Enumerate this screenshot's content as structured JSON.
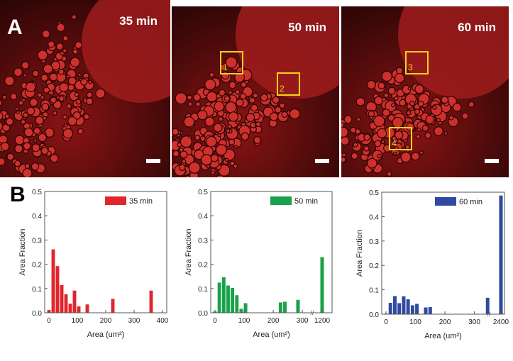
{
  "panel_a": {
    "letter": "A",
    "images": [
      {
        "time_label": "35 min",
        "rois": []
      },
      {
        "time_label": "50 min",
        "rois": [
          "1",
          "2"
        ]
      },
      {
        "time_label": "60 min",
        "rois": [
          "3",
          "4"
        ]
      }
    ],
    "roi_color": "#f2d21b"
  },
  "panel_b": {
    "letter": "B"
  },
  "chart_data": [
    {
      "type": "bar",
      "legend": "35 min",
      "color": "#e0262c",
      "xlabel": "Area (um²)",
      "ylabel": "Area Fraction",
      "ylim": [
        0,
        0.5
      ],
      "yticks": [
        "0.0",
        "0.1",
        "0.2",
        "0.3",
        "0.4",
        "0.5"
      ],
      "xticks": [
        "0",
        "100",
        "200",
        "300",
        "400"
      ],
      "legend_position": "top-right",
      "x": [
        0,
        15,
        30,
        45,
        60,
        75,
        90,
        105,
        135,
        225,
        360
      ],
      "values": [
        0.012,
        0.262,
        0.193,
        0.115,
        0.077,
        0.038,
        0.092,
        0.027,
        0.035,
        0.058,
        0.092
      ]
    },
    {
      "type": "bar",
      "legend": "50 min",
      "color": "#1aa24a",
      "xlabel": "Area (um²)",
      "ylabel": "Area Fraction",
      "ylim": [
        0,
        0.5
      ],
      "yticks": [
        "0.0",
        "0.1",
        "0.2",
        "0.3",
        "0.4",
        "0.5"
      ],
      "xticks": [
        "0",
        "100",
        "200",
        "300",
        "1200"
      ],
      "axis_break": "300–1200",
      "legend_position": "top-right",
      "x": [
        0,
        15,
        30,
        45,
        60,
        75,
        90,
        105,
        225,
        240,
        285,
        1200
      ],
      "values": [
        0.006,
        0.125,
        0.147,
        0.113,
        0.103,
        0.073,
        0.017,
        0.04,
        0.043,
        0.046,
        0.054,
        0.23
      ]
    },
    {
      "type": "bar",
      "legend": "60 min",
      "color": "#2f4aa0",
      "xlabel": "Area (um²)",
      "ylabel": "Area Fraction",
      "ylim": [
        0,
        0.5
      ],
      "yticks": [
        "0.0",
        "0.1",
        "0.2",
        "0.3",
        "0.4",
        "0.5"
      ],
      "xticks": [
        "0",
        "100",
        "200",
        "300",
        "2400"
      ],
      "axis_break": "300–2400",
      "legend_position": "top-right",
      "x": [
        0,
        15,
        30,
        45,
        60,
        75,
        90,
        105,
        135,
        150,
        345,
        2400
      ],
      "values": [
        0.003,
        0.047,
        0.075,
        0.046,
        0.074,
        0.062,
        0.037,
        0.043,
        0.028,
        0.03,
        0.068,
        0.487
      ]
    }
  ]
}
